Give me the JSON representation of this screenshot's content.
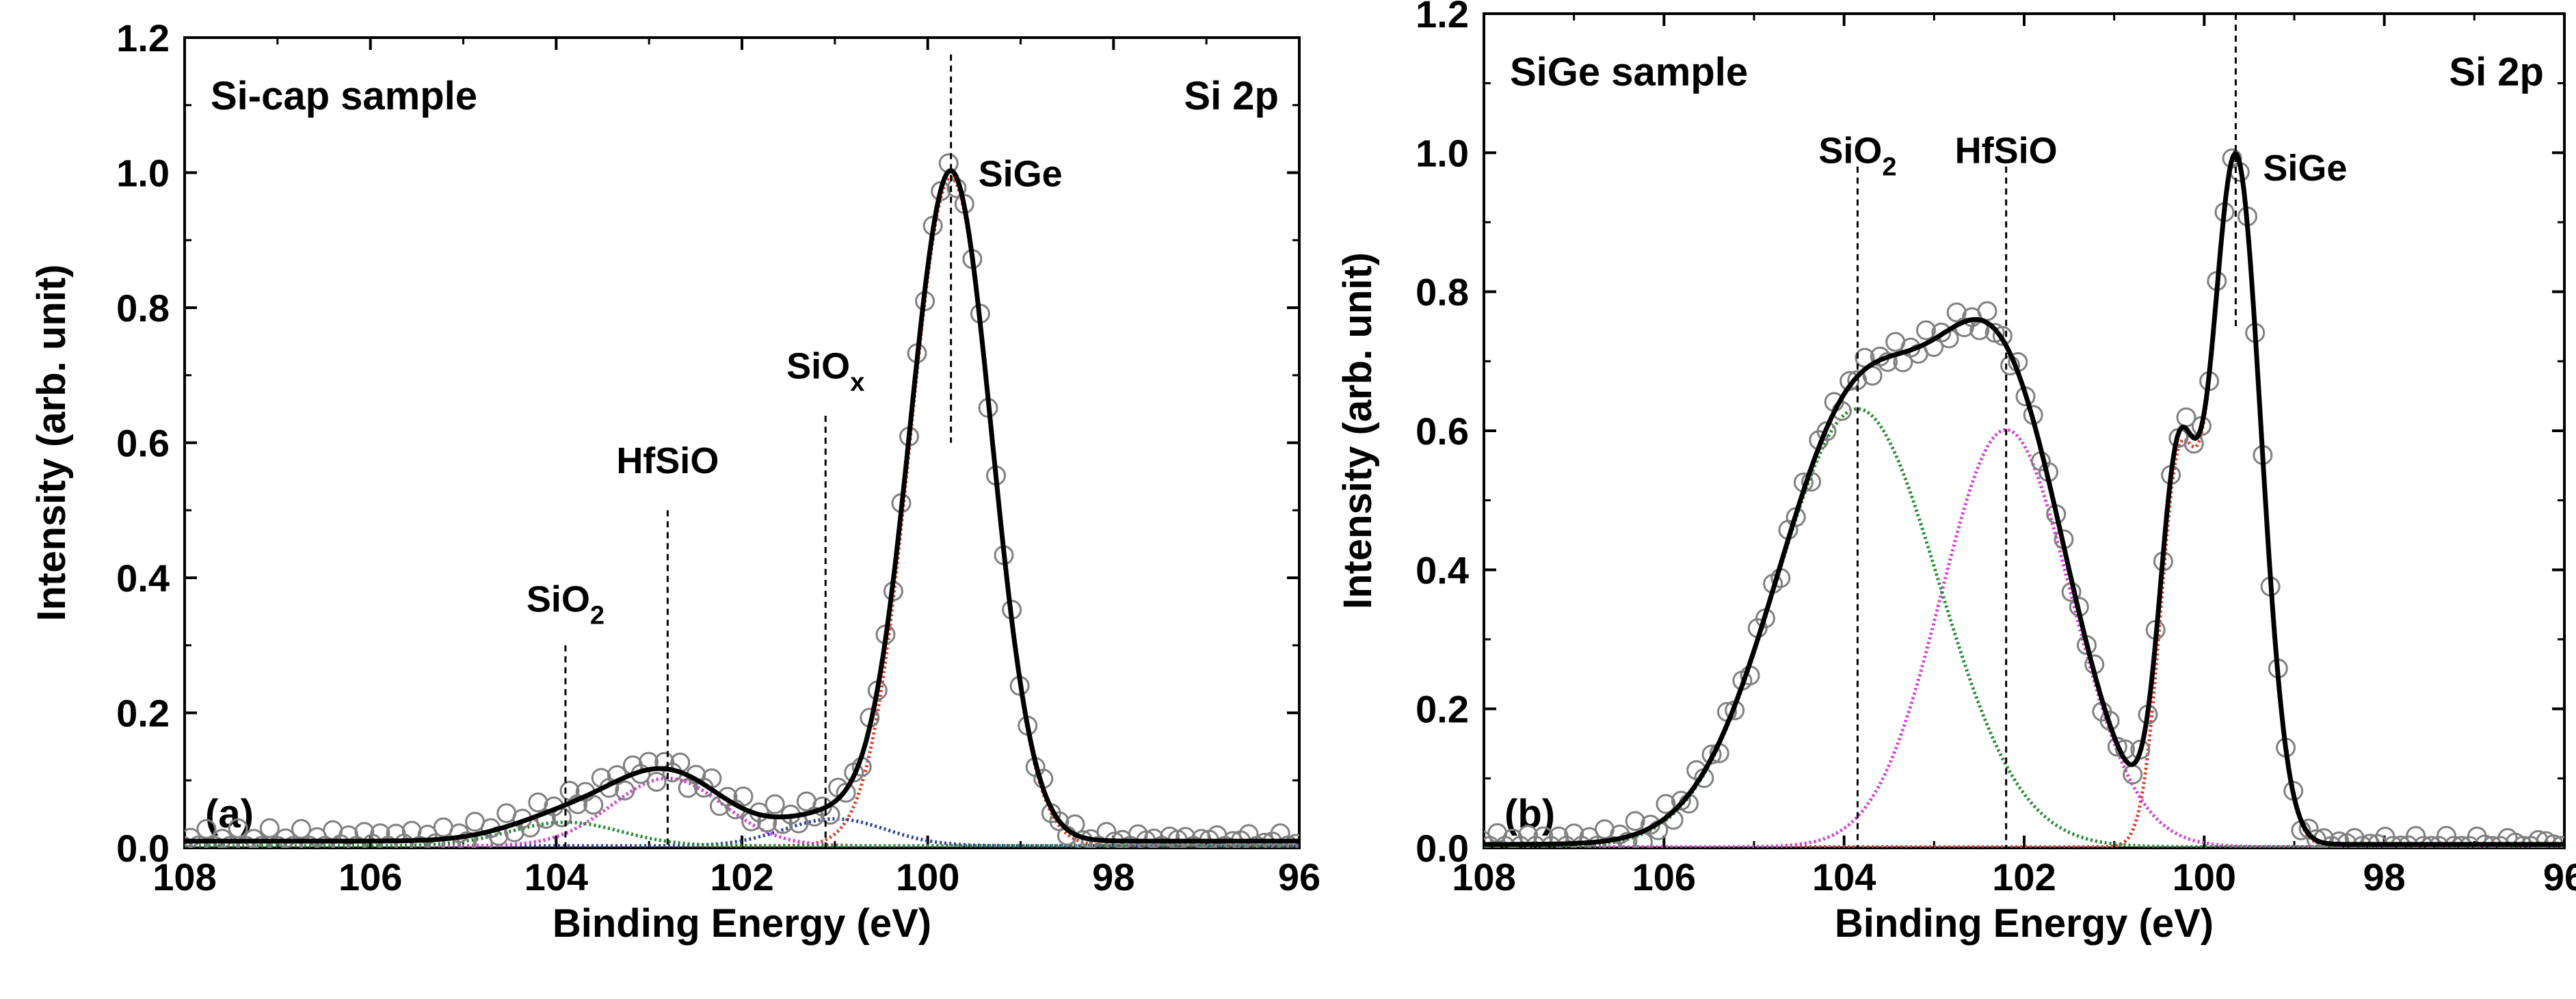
{
  "chart_data": [
    {
      "type": "line",
      "panel_label": "(a)",
      "sample_label": "Si-cap sample",
      "region_label": "Si 2p",
      "xlabel": "Binding Energy (eV)",
      "ylabel": "Intensity (arb. unit)",
      "xlim": [
        108,
        96
      ],
      "ylim": [
        0,
        1.2
      ],
      "xticks": [
        "108",
        "106",
        "104",
        "102",
        "100",
        "98",
        "96"
      ],
      "yticks": [
        "0.0",
        "0.2",
        "0.4",
        "0.6",
        "0.8",
        "1.0",
        "1.2"
      ],
      "background": 0.01,
      "components": [
        {
          "name": "SiGe",
          "color": "#d63a2a",
          "dash": "3,4",
          "center": 99.75,
          "height": 0.99,
          "sigma": 0.44,
          "smallpeak": {
            "center": 100.35,
            "height": 0.0,
            "sigma": 0.2
          }
        },
        {
          "name": "SiOx",
          "color": "#2c3f9e",
          "dash": "3,4",
          "center": 101.0,
          "height": 0.04,
          "sigma": 0.55
        },
        {
          "name": "HfSiO",
          "color": "#d43bd4",
          "dash": "3,4",
          "center": 102.8,
          "height": 0.1,
          "sigma": 0.6
        },
        {
          "name": "SiO2",
          "color": "#1f8a2e",
          "dash": "3,4",
          "center": 103.9,
          "height": 0.035,
          "sigma": 0.6
        }
      ],
      "annotations": [
        {
          "main": "SiO",
          "sub": "2",
          "line_x": 103.9,
          "line_top": 0.3,
          "label_y": 0.35,
          "sub_style": "subscript"
        },
        {
          "main": "HfSiO",
          "sub": "",
          "line_x": 102.8,
          "line_top": 0.5,
          "label_y": 0.555,
          "sub_style": "none"
        },
        {
          "main": "SiO",
          "sub": "x",
          "line_x": 101.1,
          "line_top": 0.64,
          "label_y": 0.695,
          "sub_style": "subscript"
        },
        {
          "main": "SiGe",
          "sub": "",
          "line_x": 99.75,
          "line_top": 1.175,
          "label_y": 0.98,
          "sub_style": "none",
          "line_bottom": 0.6,
          "label_side": "right"
        }
      ]
    },
    {
      "type": "line",
      "panel_label": "(b)",
      "sample_label": "SiGe sample",
      "region_label": "Si 2p",
      "xlabel": "Binding Energy (eV)",
      "ylabel": "Intensity (arb. unit)",
      "xlim": [
        108,
        96
      ],
      "ylim": [
        0,
        1.2
      ],
      "xticks": [
        "108",
        "106",
        "104",
        "102",
        "100",
        "98",
        "96"
      ],
      "yticks": [
        "0.0",
        "0.2",
        "0.4",
        "0.6",
        "0.8",
        "1.0",
        "1.2"
      ],
      "background": 0.005,
      "components": [
        {
          "name": "SiGe",
          "color": "#d63a2a",
          "dash": "3,4",
          "center": 99.65,
          "height": 0.99,
          "sigma": 0.28,
          "smallpeak": {
            "center": 100.3,
            "height": 0.5,
            "sigma": 0.2
          }
        },
        {
          "name": "HfSiO",
          "color": "#d43bd4",
          "dash": "3,4",
          "center": 102.2,
          "height": 0.6,
          "sigma": 0.72
        },
        {
          "name": "SiO2",
          "color": "#1f8a2e",
          "dash": "3,4",
          "center": 103.85,
          "height": 0.63,
          "sigma": 0.9
        }
      ],
      "annotations": [
        {
          "main": "SiO",
          "sub": "2",
          "line_x": 103.85,
          "line_top": 0.98,
          "label_y": 0.985,
          "sub_style": "subscript"
        },
        {
          "main": "HfSiO",
          "sub": "",
          "line_x": 102.2,
          "line_top": 0.98,
          "label_y": 0.985,
          "sub_style": "none"
        },
        {
          "main": "SiGe",
          "sub": "",
          "line_x": 99.65,
          "line_top": 1.2,
          "label_y": 0.96,
          "sub_style": "none",
          "line_bottom": 0.75,
          "label_side": "right"
        }
      ]
    }
  ]
}
